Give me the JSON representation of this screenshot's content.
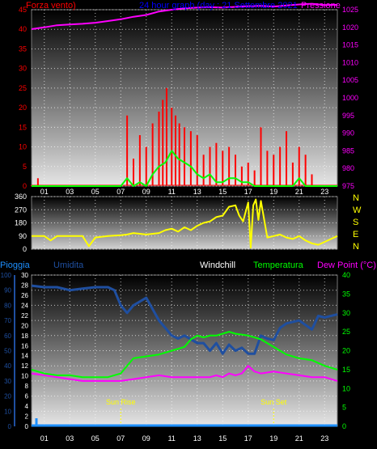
{
  "colors": {
    "wind": "#ff0000",
    "gust": "#00ff00",
    "pressure": "#ff00ff",
    "direction": "#ffff00",
    "title": "#0000ff",
    "humidity": "#1f4fa0",
    "temperature": "#00ff00",
    "dewpoint": "#ff00ff",
    "rain": "#1e90ff",
    "left_axis1": "#ff0000",
    "right_axis1": "#ff00ff",
    "dir_axis": "#ffff00",
    "pioggia": "#1e90ff",
    "umidita": "#1f4fa0",
    "windchill": "#ffffff",
    "temp_axis": "#00ff00",
    "sun_markers": "#ffff00"
  },
  "chart_data": [
    {
      "type": "line",
      "panel": "wind-pressure",
      "title": "24 hour graph (day : 21 Settembre 2021",
      "left_label": "Forza vento)",
      "right_label": "Pressione",
      "x_ticks": [
        "01",
        "03",
        "05",
        "07",
        "09",
        "11",
        "13",
        "15",
        "17",
        "19",
        "21",
        "23"
      ],
      "left_ticks": [
        "45",
        "40",
        "35",
        "30",
        "25",
        "20",
        "15",
        "10",
        "5",
        "0"
      ],
      "right_ticks": [
        "1025",
        "1020",
        "1015",
        "1010",
        "1005",
        "1000",
        "995",
        "990",
        "985",
        "980",
        "975"
      ],
      "left_range": [
        0,
        45
      ],
      "right_range": [
        975,
        1025
      ],
      "grid": true,
      "series": [
        {
          "key": "pressure",
          "axis": "right",
          "x": [
            0,
            1,
            2,
            3,
            4,
            5,
            6,
            7,
            8,
            9,
            10,
            11,
            12,
            13,
            14,
            15,
            16,
            17,
            18,
            19,
            20,
            21,
            22,
            23,
            24
          ],
          "values": [
            1019.5,
            1020,
            1020.6,
            1020.8,
            1021,
            1021.3,
            1021.8,
            1022.3,
            1023,
            1023.5,
            1024.5,
            1025,
            1025.4,
            1025.6,
            1025.7,
            1025.6,
            1025.8,
            1026,
            1026.1,
            1025.9,
            1026.2,
            1026.5,
            1026.7,
            1026.3,
            1026.4
          ]
        },
        {
          "key": "wind",
          "axis": "left",
          "style": "spikes",
          "x": [
            0,
            0.5,
            1,
            1.5,
            2,
            2.5,
            3,
            3.5,
            4,
            4.5,
            5,
            5.5,
            6,
            6.5,
            7,
            7.5,
            8,
            8.5,
            9,
            9.5,
            10,
            10.3,
            10.6,
            11,
            11.3,
            11.6,
            12,
            12.5,
            13,
            13.5,
            14,
            14.5,
            15,
            15.5,
            16,
            16.5,
            17,
            17.5,
            18,
            18.5,
            19,
            19.5,
            20,
            20.5,
            21,
            21.5,
            22,
            22.5,
            23,
            23.5
          ],
          "values": [
            0,
            2,
            0,
            0,
            0,
            0,
            0,
            0,
            0,
            0,
            0,
            0,
            0,
            0,
            0,
            18,
            7,
            13,
            10,
            16,
            19,
            22,
            25,
            20,
            18,
            16,
            15,
            14,
            13,
            8,
            10,
            11,
            9,
            10,
            8,
            5,
            6,
            4,
            15,
            9,
            8,
            10,
            14,
            6,
            10,
            8,
            3,
            0,
            0,
            0
          ]
        },
        {
          "key": "gust",
          "axis": "left",
          "x": [
            0,
            2,
            4,
            6,
            7,
            7.5,
            8,
            8.5,
            9,
            9.5,
            10,
            10.5,
            11,
            11.5,
            12,
            12.5,
            13,
            13.5,
            14,
            14.5,
            15,
            15.5,
            16,
            16.5,
            17,
            17.5,
            18,
            19,
            20,
            20.5,
            21,
            21.5,
            22,
            24
          ],
          "values": [
            0,
            0,
            0,
            0,
            0,
            2,
            0,
            1,
            0,
            3,
            5,
            6,
            9,
            7,
            6,
            5,
            3,
            2,
            3,
            1,
            1,
            2,
            2,
            1,
            1,
            0,
            0,
            0,
            0,
            0,
            2,
            0,
            0,
            0
          ]
        }
      ]
    },
    {
      "type": "line",
      "panel": "wind-direction",
      "x_ticks": [],
      "left_ticks": [
        "360",
        "270",
        "180",
        "90",
        "0"
      ],
      "right_labels": [
        "N",
        "W",
        "S",
        "E",
        "N"
      ],
      "left_range": [
        0,
        360
      ],
      "grid": true,
      "series": [
        {
          "key": "direction",
          "x": [
            0,
            1,
            1.5,
            2,
            3,
            4,
            4.5,
            5,
            6,
            7,
            7.5,
            8,
            9,
            10,
            10.5,
            11,
            11.5,
            12,
            12.5,
            13,
            13.5,
            14,
            14.5,
            15,
            15.5,
            16,
            16.3,
            16.6,
            17,
            17.2,
            17.4,
            17.6,
            17.8,
            18,
            18.5,
            19,
            19.5,
            20,
            20.5,
            21,
            21.5,
            22,
            22.5,
            23,
            23.5,
            24
          ],
          "values": [
            90,
            90,
            60,
            90,
            90,
            90,
            20,
            80,
            90,
            95,
            100,
            110,
            100,
            110,
            130,
            140,
            120,
            150,
            130,
            160,
            180,
            190,
            220,
            230,
            290,
            300,
            230,
            190,
            320,
            10,
            300,
            340,
            200,
            330,
            80,
            90,
            100,
            80,
            70,
            90,
            60,
            40,
            30,
            50,
            70,
            90
          ]
        }
      ]
    },
    {
      "type": "line",
      "panel": "temperature-humidity",
      "labels": {
        "pioggia": "Pioggia",
        "umidita": "Umidita",
        "windchill": "Windchill",
        "temperatura": "Temperatura",
        "dewpoint": "Dew Point (°C)"
      },
      "x_ticks": [
        "01",
        "03",
        "05",
        "07",
        "09",
        "11",
        "13",
        "15",
        "17",
        "19",
        "21",
        "23"
      ],
      "hum_ticks": [
        "100",
        "90",
        "80",
        "70",
        "60",
        "50",
        "40",
        "30",
        "20",
        "10",
        "0"
      ],
      "rain_ticks": [
        "30",
        "28",
        "26",
        "24",
        "22",
        "20",
        "18",
        "16",
        "14",
        "12",
        "10",
        "8",
        "6",
        "4",
        "2",
        "0"
      ],
      "temp_ticks": [
        "40",
        "35",
        "30",
        "25",
        "20",
        "15",
        "10",
        "5",
        "0"
      ],
      "hum_range": [
        0,
        100
      ],
      "rain_range": [
        0,
        30
      ],
      "temp_range": [
        0,
        40
      ],
      "sun_rise": {
        "label": "Sun Rise",
        "x": 7.0
      },
      "sun_set": {
        "label": "Sun Set",
        "x": 19.0
      },
      "grid": true,
      "series": [
        {
          "key": "humidity",
          "axis": "hum",
          "x": [
            0,
            1,
            2,
            3,
            4,
            5,
            6,
            6.5,
            7,
            7.5,
            8,
            9,
            10,
            10.5,
            11,
            11.5,
            12,
            13,
            13.5,
            14,
            14.5,
            15,
            15.5,
            16,
            16.5,
            17,
            17.5,
            18,
            18.5,
            19,
            19.5,
            20,
            21,
            22,
            22.5,
            23,
            24
          ],
          "values": [
            93,
            92,
            92,
            90,
            91,
            92,
            92,
            90,
            80,
            75,
            80,
            85,
            70,
            65,
            60,
            58,
            60,
            55,
            55,
            50,
            55,
            48,
            54,
            50,
            52,
            48,
            48,
            60,
            58,
            57,
            65,
            68,
            70,
            64,
            73,
            72,
            74
          ]
        },
        {
          "key": "temperature",
          "axis": "temp",
          "x": [
            0,
            1,
            2,
            3,
            4,
            5,
            6,
            7,
            7.5,
            8,
            9,
            10,
            10.5,
            11,
            12,
            12.5,
            13,
            13.5,
            14,
            14.5,
            15,
            15.5,
            16,
            17,
            17.5,
            18,
            19,
            19.5,
            20,
            21,
            22,
            23,
            24
          ],
          "values": [
            15,
            14,
            13.5,
            13.5,
            13,
            13,
            13,
            14,
            16,
            18,
            18.5,
            19,
            19.5,
            20,
            21,
            23,
            24,
            23.5,
            24,
            24,
            24.5,
            25,
            24.5,
            24,
            23.5,
            23,
            21,
            20,
            19,
            18,
            17.5,
            16,
            15
          ]
        },
        {
          "key": "dewpoint",
          "axis": "temp",
          "x": [
            0,
            1,
            2,
            3,
            4,
            5,
            6,
            7,
            8,
            9,
            10,
            11,
            12,
            13,
            14,
            14.5,
            15,
            15.5,
            16,
            16.5,
            17,
            17.5,
            18,
            19,
            20,
            21,
            22,
            23,
            24
          ],
          "values": [
            14,
            13.5,
            13,
            12.5,
            12,
            12,
            12,
            12,
            12.5,
            13,
            13.5,
            13,
            13,
            13,
            13,
            13.5,
            13,
            14,
            13.5,
            14,
            16,
            14.5,
            14,
            14.5,
            14,
            13.5,
            13,
            13,
            12
          ]
        },
        {
          "key": "rain",
          "axis": "rain",
          "x": [
            0,
            24
          ],
          "values": [
            0,
            0
          ]
        }
      ]
    }
  ]
}
